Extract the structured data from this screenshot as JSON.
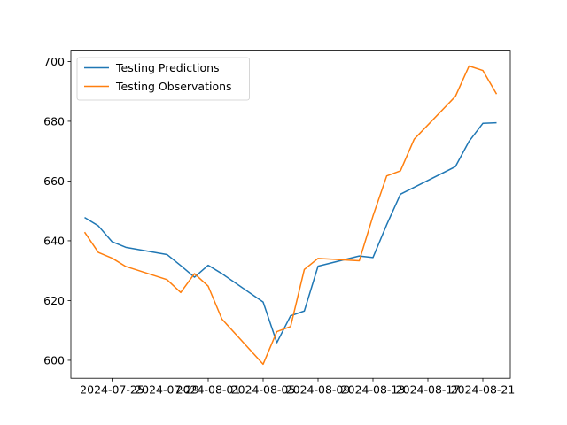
{
  "chart_data": {
    "type": "line",
    "title": "",
    "xlabel": "",
    "ylabel": "",
    "x_ticks": [
      "2024-07-25",
      "2024-07-29",
      "2024-08-01",
      "2024-08-05",
      "2024-08-09",
      "2024-08-13",
      "2024-08-17",
      "2024-08-21"
    ],
    "y_ticks": [
      "600",
      "620",
      "640",
      "660",
      "680",
      "700"
    ],
    "xlim": [
      "2024-07-22",
      "2024-08-23"
    ],
    "ylim": [
      594,
      703.5
    ],
    "grid": false,
    "legend_position": "upper-left",
    "x": [
      "2024-07-23",
      "2024-07-24",
      "2024-07-25",
      "2024-07-26",
      "2024-07-29",
      "2024-07-30",
      "2024-07-31",
      "2024-08-01",
      "2024-08-02",
      "2024-08-05",
      "2024-08-06",
      "2024-08-07",
      "2024-08-08",
      "2024-08-09",
      "2024-08-12",
      "2024-08-13",
      "2024-08-14",
      "2024-08-15",
      "2024-08-16",
      "2024-08-19",
      "2024-08-20",
      "2024-08-21",
      "2024-08-22"
    ],
    "series": [
      {
        "name": "Testing Predictions",
        "color": "#1f77b4",
        "values": [
          647.8,
          645.0,
          639.7,
          637.8,
          635.4,
          631.7,
          627.8,
          631.8,
          629.0,
          619.5,
          605.9,
          614.9,
          616.5,
          631.5,
          634.9,
          634.4,
          645.4,
          655.6,
          657.9,
          664.8,
          673.3,
          679.3,
          679.5
        ]
      },
      {
        "name": "Testing Observations",
        "color": "#ff7f0e",
        "values": [
          642.9,
          636.1,
          634.2,
          631.4,
          627.0,
          622.7,
          629.0,
          624.8,
          613.8,
          598.7,
          609.6,
          611.3,
          630.4,
          634.1,
          633.3,
          648.3,
          661.7,
          663.4,
          674.0,
          688.3,
          698.5,
          697.0,
          689.1
        ]
      }
    ]
  }
}
